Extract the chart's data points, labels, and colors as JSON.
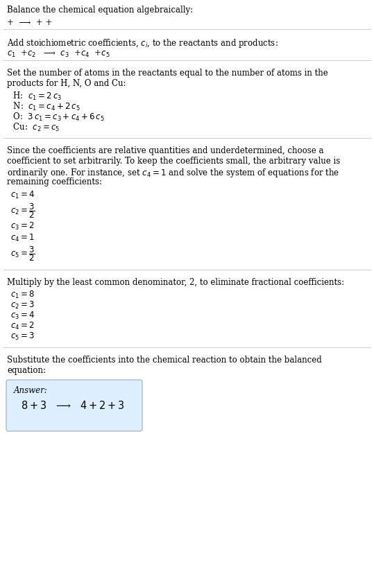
{
  "bg_color": "#ffffff",
  "text_color": "#000000",
  "section1_title": "Balance the chemical equation algebraically:",
  "section1_eq": "+  ⟶  + +",
  "section2_title": "Add stoichiometric coefficients, $c_i$, to the reactants and products:",
  "section2_eq": "$c_1$  +$c_2$   ⟶  $c_3$  +$c_4$  +$c_5$",
  "section3_title": "Set the number of atoms in the reactants equal to the number of atoms in the\nproducts for H, N, O and Cu:",
  "section3_lines": [
    " H:\\;\\;  $c_1 = 2\\,c_3$",
    " N:\\;\\;  $c_1 = c_4 + 2\\,c_5$",
    " O:\\;\\;  $3\\,c_1 = c_3 + c_4 + 6\\,c_5$",
    " Cu:\\;  $c_2 = c_5$"
  ],
  "section4_title": "Since the coefficients are relative quantities and underdetermined, choose a\ncoefficient to set arbitrarily. To keep the coefficients small, the arbitrary value is\nordinarily one. For instance, set $c_4 = 1$ and solve the system of equations for the\nremaining coefficients:",
  "section4_lines": [
    "$c_1 = 4$",
    "$c_2 = \\dfrac{3}{2}$",
    "$c_3 = 2$",
    "$c_4 = 1$",
    "$c_5 = \\dfrac{3}{2}$"
  ],
  "section5_title": "Multiply by the least common denominator, 2, to eliminate fractional coefficients:",
  "section5_lines": [
    "$c_1 = 8$",
    "$c_2 = 3$",
    "$c_3 = 4$",
    "$c_4 = 2$",
    "$c_5 = 3$"
  ],
  "section6_title": "Substitute the coefficients into the chemical reaction to obtain the balanced\nequation:",
  "answer_label": "Answer:",
  "answer_eq": "$8 + 3$   ⟶   $4 + 2 + 3$",
  "box_facecolor": "#ddeeff",
  "box_edgecolor": "#aabbcc",
  "separator_color": "#cccccc",
  "lm": 0.02,
  "fs": 8.5,
  "fs_ans": 10.5
}
